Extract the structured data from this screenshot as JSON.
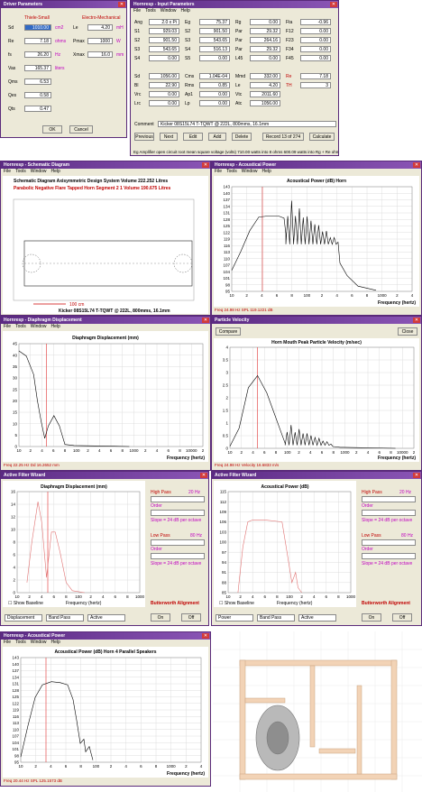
{
  "driver": {
    "title": "Driver Parameters",
    "h1": "Thiele-Small",
    "h2": "Electro-Mechanical",
    "rows": [
      {
        "l": "Sd",
        "v": "1010.00",
        "u": "cm2",
        "l2": "Le",
        "v2": "4.20",
        "u2": "mH"
      },
      {
        "l": "Re",
        "v": "7.18",
        "u": "ohms",
        "l2": "Pmax",
        "v2": "1000",
        "u2": "W"
      },
      {
        "l": "fs",
        "v": "26.20",
        "u": "Hz",
        "l2": "Xmax",
        "v2": "16.0",
        "u2": "mm"
      },
      {
        "l": "Vas",
        "v": "165.37",
        "u": "liters",
        "l2": "",
        "v2": "",
        "u2": ""
      },
      {
        "l": "Qms",
        "v": "6.53",
        "u": "",
        "l2": "",
        "v2": "",
        "u2": ""
      },
      {
        "l": "Qes",
        "v": "0.58",
        "u": "",
        "l2": "",
        "v2": "",
        "u2": ""
      },
      {
        "l": "Qts",
        "v": "0.47",
        "u": "",
        "l2": "",
        "v2": "",
        "u2": ""
      }
    ],
    "ok": "OK",
    "cancel": "Cancel"
  },
  "input": {
    "title": "Hornresp - Input Parameters",
    "menu": [
      "File",
      "Tools",
      "Window",
      "Help"
    ],
    "rows": [
      [
        "Ang",
        "2.0 x Pi",
        "Eg",
        "75.37",
        "Rg",
        "0.00",
        "Fta",
        "-0.96"
      ],
      [
        "S1",
        "929.03",
        "S2",
        "901.50",
        "Par",
        "29.32",
        "F12",
        "0.00"
      ],
      [
        "S2",
        "901.50",
        "S3",
        "543.65",
        "Par",
        "264.16",
        "F23",
        "0.00"
      ],
      [
        "S3",
        "543.65",
        "S4",
        "516.13",
        "Par",
        "29.32",
        "F34",
        "0.00"
      ],
      [
        "S4",
        "0.00",
        "S5",
        "0.00",
        "L45",
        "0.00",
        "F45",
        "0.00"
      ]
    ],
    "rows2": [
      [
        "Sd",
        "1056.00",
        "Cms",
        "1.04E-04",
        "Mmd",
        "332.00",
        "Re",
        "7.18"
      ],
      [
        "Bl",
        "22.90",
        "Rms",
        "0.85",
        "Le",
        "4.20",
        "TH",
        "3"
      ],
      [
        "Vrc",
        "0.00",
        "Ap1",
        "0.00",
        "Vtc",
        "2011.60"
      ],
      [
        "Lrc",
        "0.00",
        "Lp",
        "0.00",
        "Atc",
        "1056.00"
      ]
    ],
    "comment_label": "Comment",
    "comment": "Kicker 08S15L74 T-TQWT @ 222L, 800mms, 16.1mm",
    "buttons": [
      "Previous",
      "Next",
      "Edit",
      "Add",
      "Delete",
      "Record 13 of 274",
      "Calculate"
    ],
    "status": "Eg   Amplifier open circuit root mean square voltage  (volts)   710.00 watts into 8 ohms   600.09 watts into Rg + Re ohms"
  },
  "schem": {
    "title": "Hornresp - Schematic Diagram",
    "menu": [
      "File",
      "Tools",
      "Window",
      "Help"
    ],
    "heading": "Schematic Diagram    Axisymmetric Design    System Volume 222.252 Litres",
    "sub": "Parabolic Negative Flare Tapped Horn Segment 2 1 Volume 190.675 Litres",
    "scale": "100 cm",
    "caption": "Kicker 08S15L74 T-TQWT @ 222L, 800mms, 16.1mm"
  },
  "ap1": {
    "title": "Hornresp - Acoustical Power",
    "menu": [
      "File",
      "Tools",
      "Window",
      "Help"
    ],
    "heading": "Acoustical Power (dB)   Horn",
    "xlabel": "Frequency (hertz)",
    "yticks": [
      "143",
      "140",
      "137",
      "134",
      "131",
      "128",
      "125",
      "122",
      "119",
      "116",
      "113",
      "110",
      "107",
      "104",
      "101",
      "98",
      "95"
    ],
    "xticks": [
      "10",
      "2",
      "4",
      "6",
      "8",
      "100",
      "2",
      "4",
      "6",
      "8",
      "1000",
      "2",
      "4"
    ],
    "status": "Freq   24.98 Hz     SPL   119.1221 dB"
  },
  "disp1": {
    "title": "Hornresp - Diaphragm Displacement",
    "menu": [
      "File",
      "Tools",
      "Window",
      "Help"
    ],
    "heading": "Diaphragm Displacement (mm)",
    "xlabel": "Frequency (hertz)",
    "yticks": [
      "45",
      "40",
      "35",
      "30",
      "25",
      "20",
      "15",
      "10",
      "5",
      "0"
    ],
    "xticks": [
      "10",
      "2",
      "4",
      "6",
      "8",
      "100",
      "2",
      "4",
      "6",
      "8",
      "1000",
      "2",
      "4",
      "6",
      "8",
      "10000",
      "2"
    ],
    "status": "Freq   22.25 Hz     Dd   16.2652 mm"
  },
  "vel": {
    "title": "Particle Velocity",
    "compare": "Compare",
    "close": "Close",
    "heading": "Horn Mouth Peak Particle Velocity (m/sec)",
    "xlabel": "Frequency (hertz)",
    "yticks": [
      "4",
      "3.5",
      "3",
      "2.5",
      "2",
      "1.5",
      "1",
      "0.5",
      "0"
    ],
    "xticks": [
      "10",
      "2",
      "4",
      "6",
      "8",
      "100",
      "2",
      "4",
      "6",
      "8",
      "1000",
      "2",
      "4",
      "6",
      "8",
      "10000",
      "2"
    ],
    "status": "Freq   24.98 Hz     Velocity   16.6833 m/s"
  },
  "afw1": {
    "title": "Active Filter Wizard",
    "heading": "Diaphragm Displacement (mm)",
    "yticks": [
      "16",
      "14",
      "12",
      "10",
      "8",
      "6",
      "4",
      "2",
      "0"
    ],
    "xticks": [
      "10",
      "2",
      "4",
      "6",
      "8",
      "100",
      "2",
      "4",
      "6",
      "8",
      "1000"
    ],
    "xlabel": "Frequency (hertz)",
    "show": "Show Baseline",
    "align": "Butterworth Alignment",
    "hp": "High Pass",
    "hpv": "20 Hz",
    "order": "Order",
    "o4": "4",
    "slope": "Slope = 24 dB per octave",
    "lp": "Low Pass",
    "lpv": "80 Hz",
    "sel": [
      "Displacement",
      "Band Pass",
      "Active"
    ],
    "on": "On",
    "off": "Off"
  },
  "afw2": {
    "title": "Active Filter Wizard",
    "heading": "Acoustical Power (dB)",
    "yticks": [
      "115",
      "112",
      "109",
      "106",
      "103",
      "100",
      "97",
      "94",
      "91",
      "88",
      "85"
    ],
    "xticks": [
      "10",
      "2",
      "4",
      "6",
      "8",
      "100",
      "2",
      "4",
      "6",
      "8",
      "1000"
    ],
    "xlabel": "Frequency (hertz)",
    "show": "Show Baseline",
    "align": "Butterworth Alignment",
    "hp": "High Pass",
    "hpv": "20 Hz",
    "order": "Order",
    "o4": "4",
    "slope": "Slope = 24 dB per octave",
    "lp": "Low Pass",
    "lpv": "80 Hz",
    "sel": [
      "Power",
      "Band Pass",
      "Active"
    ],
    "on": "On",
    "off": "Off"
  },
  "ap2": {
    "title": "Hornresp - Acoustical Power",
    "menu": [
      "File",
      "Tools",
      "Window",
      "Help"
    ],
    "heading": "Acoustical Power (dB)   Horn   4 Parallel Speakers",
    "xlabel": "Frequency (hertz)",
    "yticks": [
      "143",
      "140",
      "137",
      "134",
      "131",
      "128",
      "125",
      "122",
      "119",
      "116",
      "113",
      "110",
      "107",
      "104",
      "101",
      "98",
      "95"
    ],
    "xticks": [
      "10",
      "2",
      "4",
      "6",
      "8",
      "100",
      "2",
      "4",
      "6",
      "8",
      "1000",
      "2",
      "4"
    ],
    "status": "Freq   20.44 Hz     SPL   125.1573 dB"
  }
}
